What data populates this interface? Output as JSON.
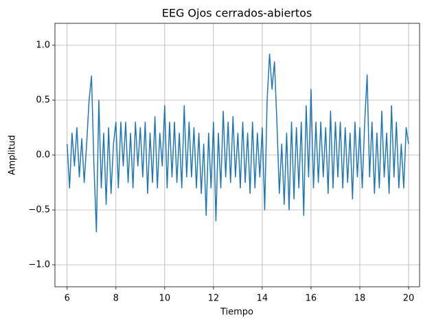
{
  "chart_data": {
    "type": "line",
    "title": "EEG Ojos cerrados-abiertos",
    "x_label": "Tiempo",
    "y_label": "Amplitud",
    "color": "#1f77b4",
    "grid": true,
    "xlim": [
      5.5,
      20.45
    ],
    "ylim": [
      -1.2,
      1.2
    ],
    "xticks": [
      6,
      8,
      10,
      12,
      14,
      16,
      18,
      20
    ],
    "yticks": [
      {
        "value": -1,
        "label": "−1.0"
      },
      {
        "value": -0.5,
        "label": "−0.5"
      },
      {
        "value": 0,
        "label": "0.0"
      },
      0.5,
      {
        "value": 1,
        "label": "1.0"
      }
    ],
    "x": [
      6,
      6.1,
      6.2,
      6.3,
      6.4,
      6.5,
      6.6,
      6.7,
      6.8,
      6.9,
      7,
      7.1,
      7.2,
      7.3,
      7.4,
      7.5,
      7.6,
      7.7,
      7.8,
      7.9,
      8,
      8.1,
      8.2,
      8.3,
      8.4,
      8.5,
      8.6,
      8.7,
      8.8,
      8.9,
      9,
      9.1,
      9.2,
      9.3,
      9.4,
      9.5,
      9.6,
      9.7,
      9.8,
      9.9,
      10,
      10.1,
      10.2,
      10.3,
      10.4,
      10.5,
      10.6,
      10.7,
      10.8,
      10.9,
      11,
      11.1,
      11.2,
      11.3,
      11.4,
      11.5,
      11.6,
      11.7,
      11.8,
      11.9,
      12,
      12.1,
      12.2,
      12.3,
      12.4,
      12.5,
      12.6,
      12.7,
      12.8,
      12.9,
      13,
      13.1,
      13.2,
      13.3,
      13.4,
      13.5,
      13.6,
      13.7,
      13.8,
      13.9,
      14,
      14.1,
      14.2,
      14.3,
      14.4,
      14.5,
      14.6,
      14.7,
      14.8,
      14.9,
      15,
      15.1,
      15.2,
      15.3,
      15.4,
      15.5,
      15.6,
      15.7,
      15.8,
      15.9,
      16,
      16.1,
      16.2,
      16.3,
      16.4,
      16.5,
      16.6,
      16.7,
      16.8,
      16.9,
      17,
      17.1,
      17.2,
      17.3,
      17.4,
      17.5,
      17.6,
      17.7,
      17.8,
      17.9,
      18,
      18.1,
      18.2,
      18.3,
      18.4,
      18.5,
      18.6,
      18.7,
      18.8,
      18.9,
      19,
      19.1,
      19.2,
      19.3,
      19.4,
      19.5,
      19.6,
      19.7,
      19.8,
      19.9,
      20
    ],
    "values": [
      0.1,
      -0.3,
      0.2,
      -0.1,
      0.25,
      -0.2,
      0.15,
      -0.25,
      0.1,
      0.5,
      0.72,
      -0.1,
      -0.7,
      0.5,
      -0.3,
      0.2,
      -0.45,
      0.25,
      -0.35,
      0.1,
      0.3,
      -0.3,
      0.3,
      -0.1,
      0.3,
      -0.25,
      0.2,
      -0.3,
      0.3,
      -0.1,
      0.25,
      -0.2,
      0.3,
      -0.35,
      0.2,
      -0.25,
      0.35,
      -0.3,
      0.2,
      -0.1,
      0.45,
      -0.3,
      0.3,
      -0.2,
      0.3,
      -0.25,
      0.2,
      -0.3,
      0.45,
      -0.2,
      0.3,
      -0.2,
      0.25,
      -0.3,
      0.2,
      -0.35,
      0.1,
      -0.55,
      0.2,
      -0.3,
      0.3,
      -0.6,
      0.2,
      -0.3,
      0.4,
      -0.2,
      0.3,
      -0.25,
      0.35,
      -0.2,
      0.2,
      -0.3,
      0.3,
      -0.25,
      0.2,
      -0.35,
      0.3,
      -0.3,
      0.2,
      -0.2,
      0.25,
      -0.5,
      0.5,
      0.92,
      0.6,
      0.85,
      0.3,
      -0.35,
      0.1,
      -0.45,
      0.2,
      -0.5,
      0.3,
      -0.4,
      0.25,
      -0.3,
      0.3,
      -0.55,
      0.45,
      -0.2,
      0.6,
      -0.3,
      0.3,
      -0.25,
      0.3,
      -0.2,
      0.25,
      -0.35,
      0.4,
      -0.3,
      0.3,
      -0.2,
      0.3,
      -0.3,
      0.25,
      -0.25,
      0.2,
      -0.4,
      0.3,
      -0.2,
      0.25,
      -0.3,
      0.3,
      0.73,
      -0.2,
      0.3,
      -0.35,
      0.2,
      -0.3,
      0.4,
      -0.2,
      0.2,
      -0.35,
      0.45,
      -0.2,
      0.3,
      -0.3,
      0.1,
      -0.3,
      0.25,
      0.1
    ]
  }
}
